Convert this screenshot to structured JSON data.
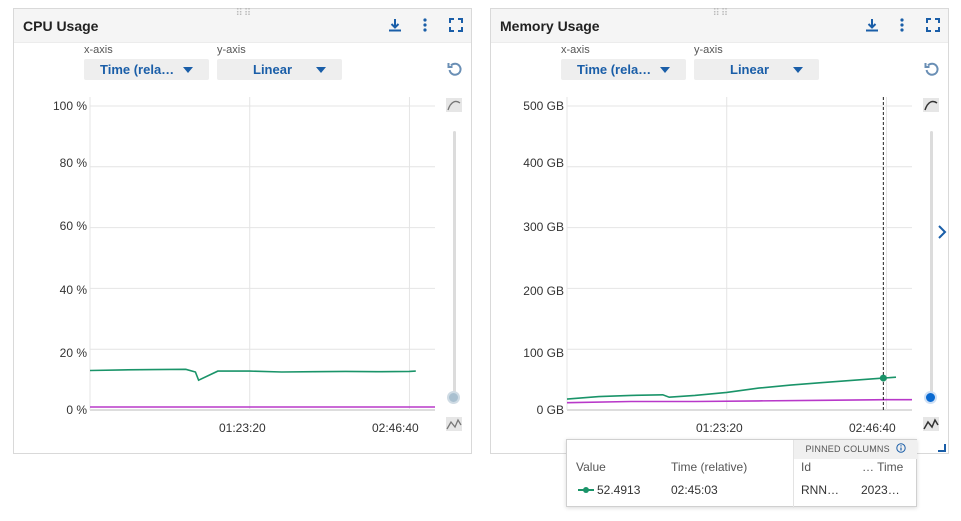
{
  "cpu": {
    "title": "CPU Usage",
    "x_axis_label": "x-axis",
    "y_axis_label": "y-axis",
    "x_axis_value": "Time (rela…",
    "y_axis_value": "Linear",
    "icons": [
      "download-icon",
      "more-vert-icon",
      "fullscreen-icon",
      "reset-icon",
      "smoothing-icon",
      "curve-icon"
    ],
    "y_ticks": [
      "100 %",
      "80 %",
      "60 %",
      "40 %",
      "20 %",
      "0 %"
    ],
    "x_ticks": [
      "01:23:20",
      "02:46:40"
    ],
    "slider_value": 0
  },
  "memory": {
    "title": "Memory Usage",
    "x_axis_label": "x-axis",
    "y_axis_label": "y-axis",
    "x_axis_value": "Time (rela…",
    "y_axis_value": "Linear",
    "icons": [
      "download-icon",
      "more-vert-icon",
      "fullscreen-icon",
      "reset-icon",
      "smoothing-icon",
      "curve-icon"
    ],
    "y_ticks": [
      "500 GB",
      "400 GB",
      "300 GB",
      "200 GB",
      "100 GB",
      "0 GB"
    ],
    "x_ticks": [
      "01:23:20",
      "02:46:40"
    ],
    "slider_value": 0
  },
  "tooltip": {
    "pinned_header": "PINNED COLUMNS",
    "columns": [
      "Value",
      "Time (relative)",
      "Id",
      "… Time"
    ],
    "row": [
      "52.4913",
      "02:45:03",
      "RNN…",
      "2023…"
    ]
  },
  "colors": {
    "green_series": "#1a9469",
    "magenta_series": "#b838c9",
    "accent_blue": "#1a5ea8",
    "slider_blue": "#0a6ad1"
  },
  "chart_data": [
    {
      "type": "line",
      "title": "CPU Usage",
      "ylabel": "",
      "xlabel": "",
      "ylim": [
        0,
        100
      ],
      "xlim": [
        0,
        10800
      ],
      "x_tick_labels": [
        "01:23:20",
        "02:46:40"
      ],
      "y_tick_labels": [
        "0 %",
        "20 %",
        "40 %",
        "60 %",
        "80 %",
        "100 %"
      ],
      "grid": true,
      "series": [
        {
          "color": "#1a9469",
          "x": [
            0,
            1000,
            2000,
            3000,
            3300,
            3400,
            4000,
            5000,
            6000,
            7000,
            8000,
            9000,
            10000,
            10200
          ],
          "y": [
            13.0,
            13.2,
            13.3,
            13.4,
            12.5,
            9.8,
            12.8,
            12.8,
            12.5,
            12.6,
            12.7,
            12.6,
            12.7,
            12.8
          ]
        },
        {
          "color": "#b838c9",
          "x": [
            0,
            2000,
            4000,
            6000,
            8000,
            10000,
            10800
          ],
          "y": [
            1.0,
            1.0,
            1.0,
            1.0,
            1.0,
            1.0,
            1.0
          ]
        }
      ]
    },
    {
      "type": "line",
      "title": "Memory Usage",
      "ylabel": "",
      "xlabel": "",
      "ylim": [
        0,
        500
      ],
      "xlim": [
        0,
        10800
      ],
      "x_tick_labels": [
        "01:23:20",
        "02:46:40"
      ],
      "y_tick_labels": [
        "0 GB",
        "100 GB",
        "200 GB",
        "300 GB",
        "400 GB",
        "500 GB"
      ],
      "grid": true,
      "series": [
        {
          "color": "#1a9469",
          "x": [
            0,
            1000,
            2000,
            3000,
            3200,
            4000,
            5000,
            6000,
            7000,
            8000,
            9000,
            9903,
            10300
          ],
          "y": [
            18,
            22,
            24,
            25,
            21,
            24,
            29,
            36,
            41,
            45,
            49,
            52.49,
            54
          ]
        },
        {
          "color": "#b838c9",
          "x": [
            0,
            2000,
            4000,
            6000,
            8000,
            10000,
            10800
          ],
          "y": [
            12,
            14,
            14,
            15,
            16,
            17,
            17
          ]
        }
      ],
      "highlight": {
        "x": 9903,
        "y": 52.4913
      }
    }
  ]
}
